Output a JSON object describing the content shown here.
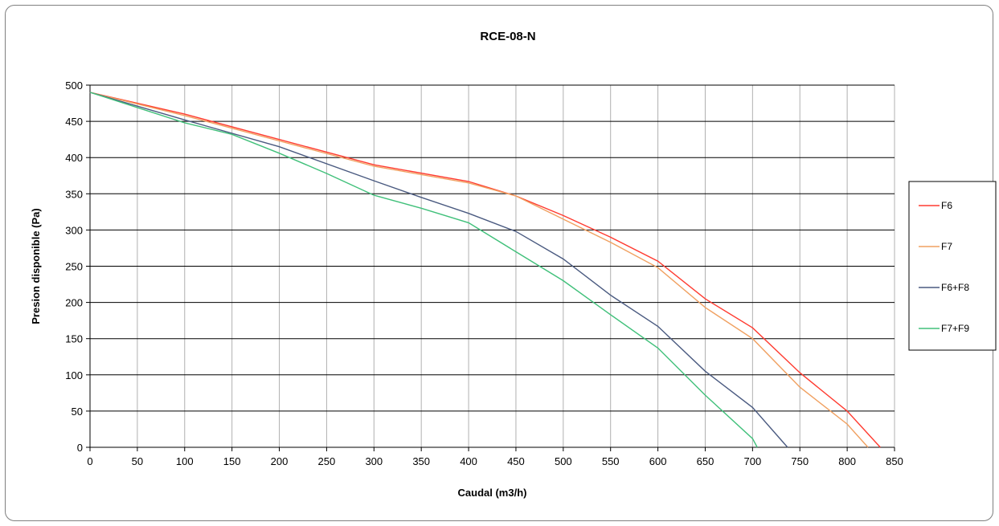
{
  "chart_data": {
    "type": "line",
    "title": "RCE-08-N",
    "xlabel": "Caudal (m3/h)",
    "ylabel": "Presion disponible  (Pa)",
    "xlim": [
      0,
      850
    ],
    "ylim": [
      0,
      500
    ],
    "xticks": [
      0,
      50,
      100,
      150,
      200,
      250,
      300,
      350,
      400,
      450,
      500,
      550,
      600,
      650,
      700,
      750,
      800,
      850
    ],
    "yticks": [
      0,
      50,
      100,
      150,
      200,
      250,
      300,
      350,
      400,
      450,
      500
    ],
    "grid": true,
    "legend_position": "right",
    "series": [
      {
        "name": "F6",
        "color": "#ff3b30",
        "x": [
          0,
          100,
          200,
          300,
          400,
          450,
          500,
          550,
          600,
          650,
          700,
          750,
          800,
          835
        ],
        "y": [
          490,
          460,
          425,
          390,
          367,
          347,
          320,
          290,
          257,
          205,
          165,
          103,
          50,
          0
        ]
      },
      {
        "name": "F7",
        "color": "#f0a060",
        "x": [
          0,
          100,
          200,
          300,
          400,
          450,
          500,
          550,
          600,
          650,
          700,
          750,
          800,
          822
        ],
        "y": [
          490,
          458,
          423,
          388,
          365,
          347,
          315,
          283,
          248,
          193,
          150,
          83,
          32,
          0
        ]
      },
      {
        "name": "F6+F8",
        "color": "#4a5a80",
        "x": [
          0,
          100,
          200,
          300,
          350,
          400,
          450,
          500,
          550,
          600,
          650,
          700,
          737
        ],
        "y": [
          490,
          452,
          415,
          368,
          345,
          323,
          298,
          260,
          210,
          167,
          105,
          55,
          0
        ]
      },
      {
        "name": "F7+F9",
        "color": "#40c07a",
        "x": [
          0,
          100,
          150,
          200,
          250,
          300,
          350,
          400,
          450,
          500,
          550,
          600,
          650,
          700,
          705
        ],
        "y": [
          490,
          448,
          432,
          406,
          378,
          348,
          330,
          310,
          270,
          230,
          183,
          137,
          72,
          12,
          0
        ]
      }
    ]
  }
}
